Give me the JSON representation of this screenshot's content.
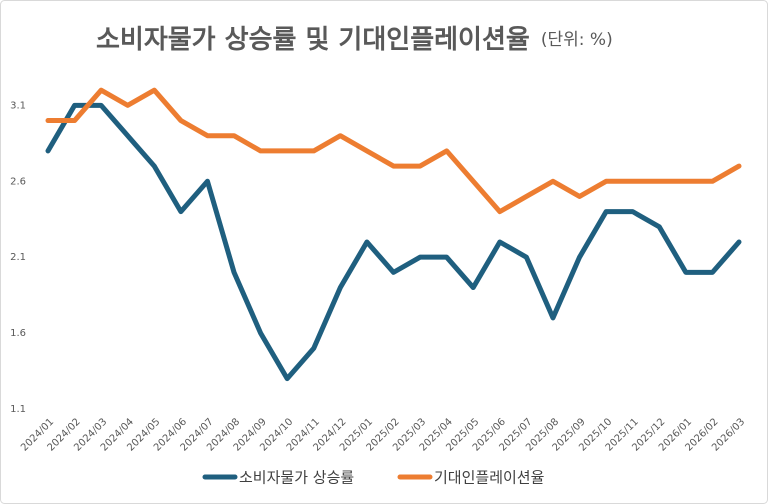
{
  "chart_data": {
    "type": "line",
    "title": "소비자물가 상승률 및 기대인플레이션율",
    "subtitle": "(단위: %)",
    "categories": [
      "2024/01",
      "2024/02",
      "2024/03",
      "2024/04",
      "2024/05",
      "2024/06",
      "2024/07",
      "2024/08",
      "2024/09",
      "2024/10",
      "2024/11",
      "2024/12",
      "2025/01",
      "2025/02",
      "2025/03",
      "2025/04",
      "2025/05",
      "2025/06",
      "2025/07",
      "2025/08",
      "2025/09",
      "2025/10",
      "2025/11",
      "2025/12",
      "2026/01",
      "2026/02",
      "2026/03"
    ],
    "series": [
      {
        "name": "소비자물가 상승률",
        "color": "#1f5f7f",
        "values": [
          2.8,
          3.1,
          3.1,
          2.9,
          2.7,
          2.4,
          2.6,
          2.0,
          1.6,
          1.3,
          1.5,
          1.9,
          2.2,
          2.0,
          2.1,
          2.1,
          1.9,
          2.2,
          2.1,
          1.7,
          2.1,
          2.4,
          2.4,
          2.3,
          2.0,
          2.0,
          2.2
        ]
      },
      {
        "name": "기대인플레이션율",
        "color": "#ed7d31",
        "values": [
          3.0,
          3.0,
          3.2,
          3.1,
          3.2,
          3.0,
          2.9,
          2.9,
          2.8,
          2.8,
          2.8,
          2.9,
          2.8,
          2.7,
          2.7,
          2.8,
          2.6,
          2.4,
          2.5,
          2.6,
          2.5,
          2.6,
          2.6,
          2.6,
          2.6,
          2.6,
          2.7
        ]
      }
    ],
    "ylim": [
      1.1,
      3.3
    ],
    "yticks": [
      1.1,
      1.6,
      2.1,
      2.6,
      3.1
    ],
    "grid": false,
    "legend": "bottom"
  }
}
